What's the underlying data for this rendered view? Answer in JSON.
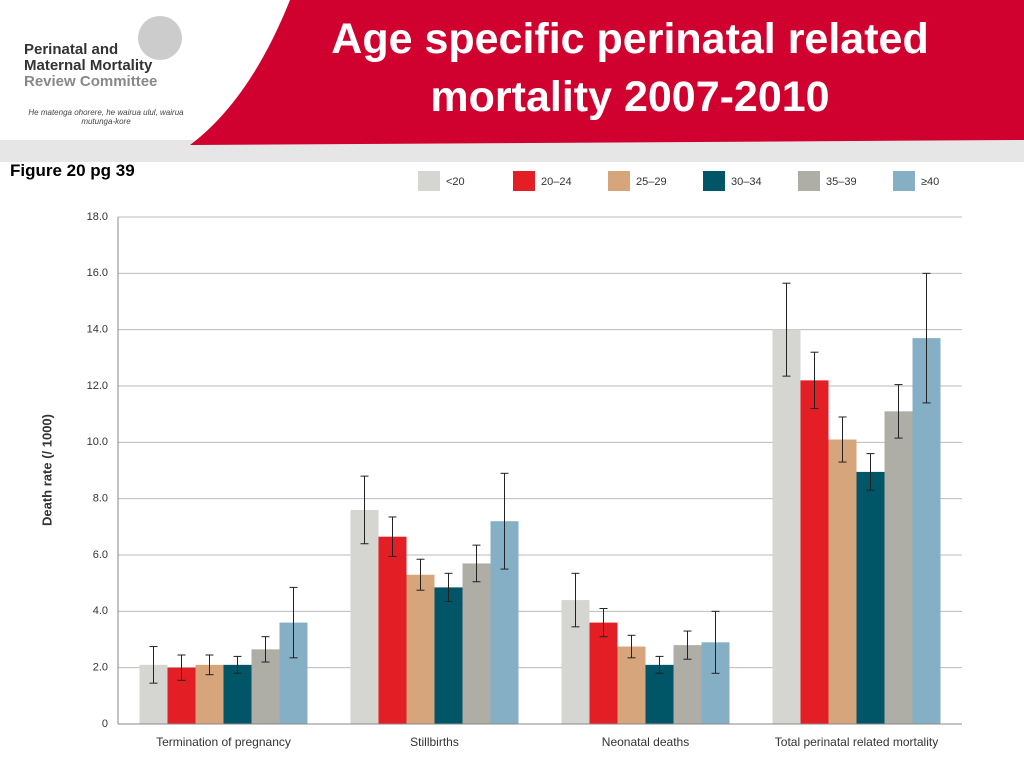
{
  "header": {
    "logo_lines": [
      "Perinatal and",
      "Maternal Mortality",
      "Review Committee"
    ],
    "logo_motto": "He matenga ohorere, he wairua ulul, wairua mutunga-kore"
  },
  "slide_title": "Age specific perinatal related mortality 2007-2010",
  "figure_note": "Figure 20 pg 39",
  "chart_data": {
    "type": "bar",
    "categories": [
      "Termination of pregnancy",
      "Stillbirths",
      "Neonatal deaths",
      "Total perinatal related mortality"
    ],
    "ylabel": "Death rate (/ 1000)",
    "ylim": [
      0,
      18
    ],
    "yticks": [
      0,
      {
        "value": 2,
        "label": "2.0"
      },
      {
        "value": 4,
        "label": "4.0"
      },
      {
        "value": 6,
        "label": "6.0"
      },
      {
        "value": 8,
        "label": "8.0"
      },
      {
        "value": 10,
        "label": "10.0"
      },
      {
        "value": 12,
        "label": "12.0"
      },
      {
        "value": 14,
        "label": "14.0"
      },
      {
        "value": 16,
        "label": "16.0"
      },
      {
        "value": 18,
        "label": "18.0"
      }
    ],
    "grid": true,
    "legend": "top",
    "series": [
      {
        "name": "<20",
        "color": "#d5d5d1",
        "values": [
          2.1,
          7.6,
          4.4,
          14.0
        ],
        "errors": [
          0.65,
          1.2,
          0.95,
          1.65
        ]
      },
      {
        "name": "20–24",
        "color": "#e31e24",
        "values": [
          2.0,
          6.65,
          3.6,
          12.2
        ],
        "errors": [
          0.45,
          0.7,
          0.5,
          1.0
        ]
      },
      {
        "name": "25–29",
        "color": "#d6a57c",
        "values": [
          2.1,
          5.3,
          2.75,
          10.1
        ],
        "errors": [
          0.35,
          0.55,
          0.4,
          0.8
        ]
      },
      {
        "name": "30–34",
        "color": "#005566",
        "values": [
          2.1,
          4.85,
          2.1,
          8.95
        ],
        "errors": [
          0.3,
          0.5,
          0.3,
          0.65
        ]
      },
      {
        "name": "35–39",
        "color": "#aeada6",
        "values": [
          2.65,
          5.7,
          2.8,
          11.1
        ],
        "errors": [
          0.45,
          0.65,
          0.5,
          0.95
        ]
      },
      {
        "name": "≥40",
        "color": "#85afc4",
        "values": [
          3.6,
          7.2,
          2.9,
          13.7
        ],
        "errors": [
          1.25,
          1.7,
          1.1,
          2.3
        ]
      }
    ]
  }
}
